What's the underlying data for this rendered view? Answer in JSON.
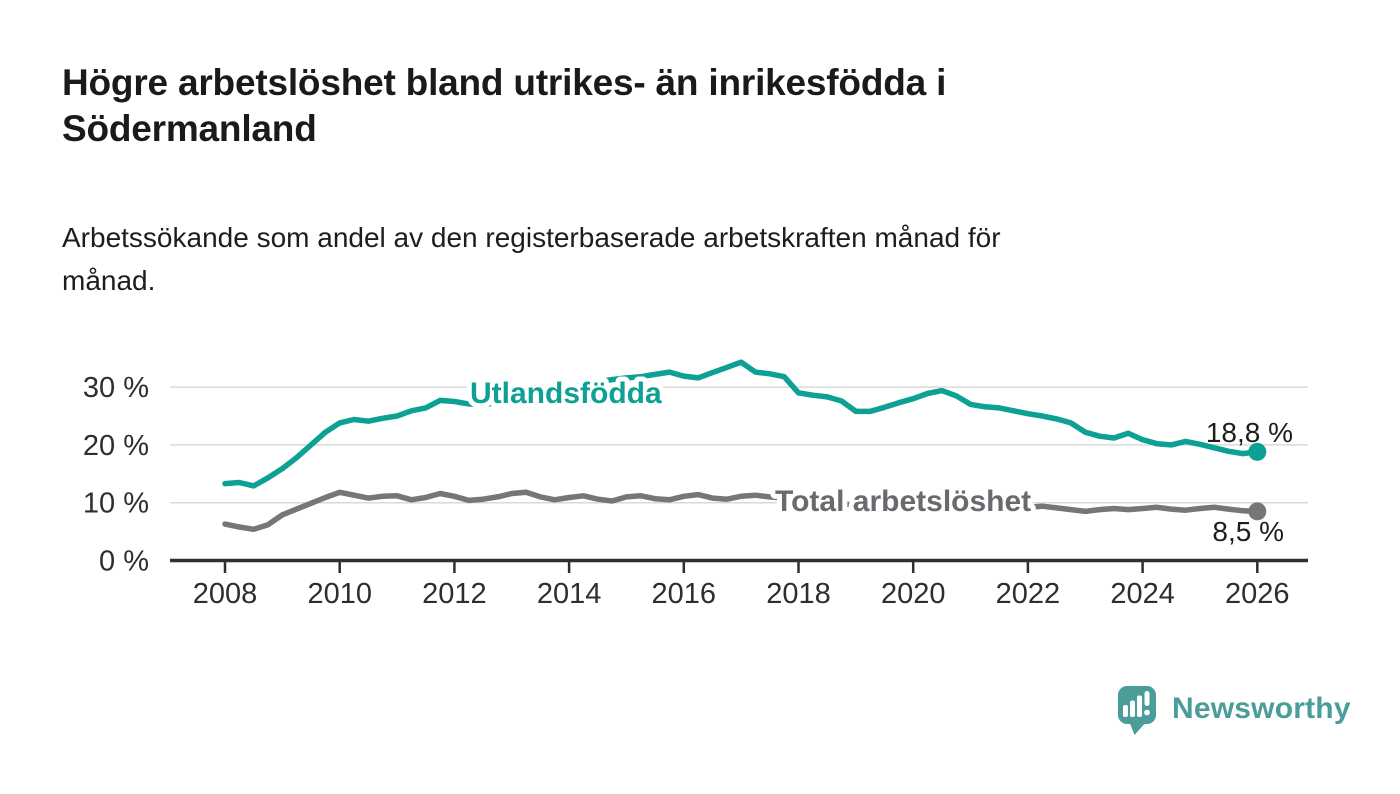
{
  "header": {
    "title_lines": [
      "Högre arbetslöshet bland utrikes- än inrikesfödda i",
      "Södermanland"
    ],
    "subtitle_lines": [
      "Arbetssökande som andel av den registerbaserade arbetskraften månad för",
      "månad."
    ]
  },
  "chart_data": {
    "type": "line",
    "title": "Högre arbetslöshet bland utrikes- än inrikesfödda i Södermanland",
    "subtitle": "Arbetssökande som andel av den registerbaserade arbetskraften månad för månad.",
    "unit": "%",
    "x_start": 2008,
    "x_step": 0.25,
    "x_end": 2026,
    "x_ticks": [
      2008,
      2010,
      2012,
      2014,
      2016,
      2018,
      2020,
      2022,
      2024,
      2026
    ],
    "y_ticks": [
      {
        "value": 0,
        "label": "0 %"
      },
      {
        "value": 10,
        "label": "10 %"
      },
      {
        "value": 20,
        "label": "20 %"
      },
      {
        "value": 30,
        "label": "30 %"
      }
    ],
    "ylim": [
      0,
      35
    ],
    "grid": "horizontal",
    "legend_position": "inline-labels",
    "series": [
      {
        "name": "Utlandsfödda",
        "color": "#0da094",
        "end_label": "18,8 %",
        "end_value": 18.8,
        "values": [
          13.3,
          13.5,
          12.9,
          14.3,
          15.9,
          17.8,
          20.0,
          22.2,
          23.8,
          24.4,
          24.1,
          24.6,
          25.0,
          25.9,
          26.4,
          27.7,
          27.5,
          27.1,
          26.9,
          27.4,
          28.0,
          28.6,
          29.1,
          29.6,
          30.0,
          30.4,
          30.9,
          31.3,
          31.6,
          31.8,
          32.2,
          32.6,
          31.9,
          31.6,
          32.5,
          33.4,
          34.3,
          32.6,
          32.3,
          31.8,
          29.0,
          28.6,
          28.3,
          27.6,
          25.8,
          25.8,
          26.5,
          27.3,
          28.0,
          28.9,
          29.4,
          28.5,
          27.0,
          26.6,
          26.4,
          25.9,
          25.4,
          25.0,
          24.5,
          23.8,
          22.2,
          21.5,
          21.2,
          22.0,
          20.9,
          20.2,
          20.0,
          20.6,
          20.1,
          19.5,
          18.9,
          18.5,
          18.8
        ]
      },
      {
        "name": "Total arbetslöshet",
        "color": "#75767a",
        "label_color": "#696a6e",
        "end_label": "8,5 %",
        "end_value": 8.5,
        "values": [
          6.3,
          5.8,
          5.4,
          6.2,
          7.9,
          8.9,
          9.9,
          10.9,
          11.8,
          11.3,
          10.8,
          11.1,
          11.2,
          10.5,
          10.9,
          11.6,
          11.1,
          10.4,
          10.6,
          11.0,
          11.6,
          11.8,
          11.0,
          10.5,
          10.9,
          11.2,
          10.6,
          10.3,
          11.0,
          11.2,
          10.7,
          10.5,
          11.1,
          11.4,
          10.8,
          10.6,
          11.1,
          11.3,
          11.0,
          10.8,
          10.5,
          10.2,
          10.0,
          9.8,
          9.6,
          9.5,
          9.6,
          9.8,
          10.0,
          10.6,
          10.9,
          10.7,
          10.3,
          9.9,
          9.5,
          9.2,
          9.2,
          9.4,
          9.1,
          8.8,
          8.5,
          8.8,
          9.0,
          8.8,
          9.0,
          9.2,
          8.9,
          8.7,
          9.0,
          9.2,
          8.9,
          8.6,
          8.5
        ]
      }
    ],
    "colors": {
      "grid": "#d9d9d9",
      "axis": "#2f2f2f",
      "axis_text": "#2e2e2e",
      "value_text": "#1d1d1b"
    }
  },
  "branding": {
    "logo_text": "Newsworthy",
    "logo_color": "#4a9d98"
  }
}
